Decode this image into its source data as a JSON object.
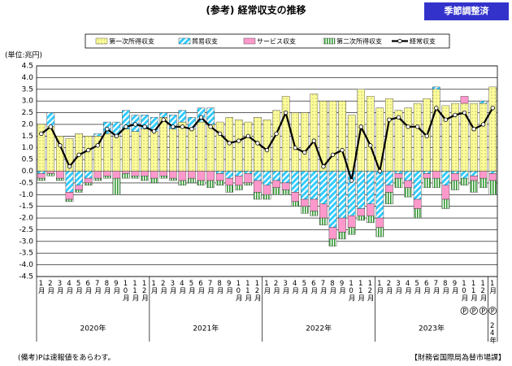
{
  "chart_data": {
    "type": "bar-line",
    "title": "(参考) 経常収支の推移",
    "badge": "季節調整済",
    "y_label": "(単位:兆円)",
    "note": "(備考)Pは速報値をあらわす。",
    "source": "【財務省国際局為替市場課】",
    "categories": [
      "1月",
      "2月",
      "3月",
      "4月",
      "5月",
      "6月",
      "7月",
      "8月",
      "9月",
      "10月",
      "11月",
      "12月",
      "1月",
      "2月",
      "3月",
      "4月",
      "5月",
      "6月",
      "7月",
      "8月",
      "9月",
      "10月",
      "11月",
      "12月",
      "1月",
      "2月",
      "3月",
      "4月",
      "5月",
      "6月",
      "7月",
      "8月",
      "9月",
      "10月",
      "11月",
      "12月",
      "1月",
      "2月",
      "3月",
      "4月",
      "5月",
      "6月",
      "7月",
      "8月",
      "9月",
      "10月",
      "11月",
      "12月",
      "1月"
    ],
    "notes": [
      null,
      null,
      null,
      null,
      null,
      null,
      null,
      null,
      null,
      null,
      null,
      null,
      null,
      null,
      null,
      null,
      null,
      null,
      null,
      null,
      null,
      null,
      null,
      null,
      null,
      null,
      null,
      null,
      null,
      null,
      null,
      null,
      null,
      null,
      null,
      null,
      null,
      null,
      null,
      null,
      null,
      null,
      null,
      null,
      null,
      "P",
      "P",
      "P",
      "P"
    ],
    "year_groups": [
      {
        "label": "2020年",
        "count": 12
      },
      {
        "label": "2021年",
        "count": 12
      },
      {
        "label": "2022年",
        "count": 12
      },
      {
        "label": "2023年",
        "count": 12
      },
      {
        "label": "24年",
        "count": 1
      }
    ],
    "series": [
      {
        "name": "第一次所得収支",
        "color": "#ffff99",
        "pattern": "dots",
        "values": [
          2.0,
          1.9,
          1.5,
          1.4,
          1.6,
          1.5,
          1.5,
          1.6,
          1.5,
          1.8,
          1.7,
          1.8,
          1.7,
          2.3,
          1.8,
          2.1,
          1.8,
          2.1,
          2.0,
          2.1,
          2.3,
          2.2,
          2.1,
          2.3,
          2.2,
          2.6,
          3.2,
          2.5,
          2.5,
          3.3,
          3.0,
          3.0,
          3.0,
          2.4,
          3.5,
          3.2,
          2.7,
          3.1,
          2.6,
          2.7,
          2.9,
          3.1,
          3.5,
          2.8,
          2.9,
          2.9,
          2.9,
          2.9,
          3.6
        ]
      },
      {
        "name": "貿易収支",
        "color": "#33ccff",
        "pattern": "hatch",
        "values": [
          -0.1,
          0.6,
          0,
          -0.9,
          -0.6,
          -0.3,
          0.1,
          0.5,
          0.6,
          0.8,
          0.7,
          0.6,
          0.6,
          0.2,
          0.6,
          0.5,
          0.5,
          0.6,
          0.7,
          -0.1,
          -0.3,
          -0.2,
          -0.1,
          -0.4,
          -0.6,
          -0.4,
          -0.5,
          -0.9,
          -1.2,
          -1.2,
          -1.4,
          -2.4,
          -2.0,
          -1.9,
          -1.6,
          -1.4,
          -2.0,
          -0.6,
          -0.1,
          -0.4,
          -1.2,
          -0.1,
          0.1,
          -0.6,
          -0.1,
          -0.3,
          -0.2,
          0.1,
          -0.1
        ]
      },
      {
        "name": "サービス収支",
        "color": "#ff99cc",
        "pattern": "solid",
        "values": [
          -0.2,
          -0.1,
          -0.3,
          -0.3,
          -0.2,
          -0.2,
          -0.3,
          -0.2,
          -0.3,
          -0.1,
          -0.2,
          -0.2,
          -0.3,
          -0.2,
          -0.3,
          -0.4,
          -0.3,
          -0.4,
          -0.4,
          -0.3,
          -0.3,
          -0.4,
          -0.4,
          -0.5,
          -0.4,
          -0.3,
          -0.3,
          -0.4,
          -0.3,
          -0.5,
          -0.6,
          -0.5,
          -0.6,
          -0.5,
          -0.3,
          -0.5,
          -0.4,
          -0.3,
          -0.2,
          -0.3,
          -0.4,
          -0.2,
          -0.3,
          -0.6,
          -0.3,
          0.3,
          -0.2,
          -0.3,
          -0.3
        ]
      },
      {
        "name": "第二次所得収支",
        "color": "#339933",
        "pattern": "vstripe",
        "values": [
          -0.1,
          -0.1,
          -0.1,
          -0.1,
          -0.1,
          -0.1,
          -0.1,
          -0.1,
          -0.7,
          -0.2,
          -0.1,
          -0.2,
          -0.2,
          -0.1,
          -0.1,
          -0.2,
          -0.2,
          -0.2,
          -0.3,
          -0.2,
          -0.3,
          -0.2,
          -0.1,
          -0.3,
          -0.2,
          -0.3,
          -0.2,
          -0.2,
          -0.3,
          -0.2,
          -0.3,
          -0.3,
          -0.3,
          -0.3,
          -0.2,
          -0.3,
          -0.4,
          -0.5,
          -0.4,
          -0.4,
          -0.4,
          -0.4,
          -0.4,
          -0.4,
          -0.4,
          -0.3,
          -0.5,
          -0.4,
          -0.6
        ]
      },
      {
        "name": "経常収支",
        "color": "#000000",
        "kind": "line",
        "values": [
          1.6,
          1.9,
          1.1,
          0.2,
          0.7,
          0.9,
          1.1,
          1.8,
          1.5,
          1.9,
          2.0,
          1.9,
          1.7,
          2.2,
          1.9,
          1.9,
          1.8,
          2.3,
          1.9,
          1.6,
          1.2,
          1.3,
          1.5,
          1.2,
          0.9,
          1.6,
          2.5,
          1.0,
          0.8,
          1.3,
          0.2,
          0.7,
          0.9,
          -0.4,
          1.9,
          1.1,
          0.0,
          2.2,
          2.3,
          1.9,
          1.9,
          1.5,
          2.7,
          2.2,
          2.4,
          2.5,
          1.8,
          2.0,
          2.7
        ]
      }
    ],
    "ylim": [
      -4.5,
      4.5
    ],
    "yticks": [
      4.5,
      {
        "value": 4,
        "label": "4.0"
      },
      3.5,
      {
        "value": 3,
        "label": "3.0"
      },
      2.5,
      {
        "value": 2,
        "label": "2.0"
      },
      1.5,
      {
        "value": 1,
        "label": "1.0"
      },
      0.5,
      {
        "value": 0,
        "label": "0.0"
      },
      -0.5,
      {
        "value": -1,
        "label": "-1.0"
      },
      -1.5,
      {
        "value": -2,
        "label": "-2.0"
      },
      -2.5,
      {
        "value": -3,
        "label": "-3.0"
      },
      -3.5,
      {
        "value": -4,
        "label": "-4.0"
      },
      -4.5
    ],
    "grid": true
  }
}
